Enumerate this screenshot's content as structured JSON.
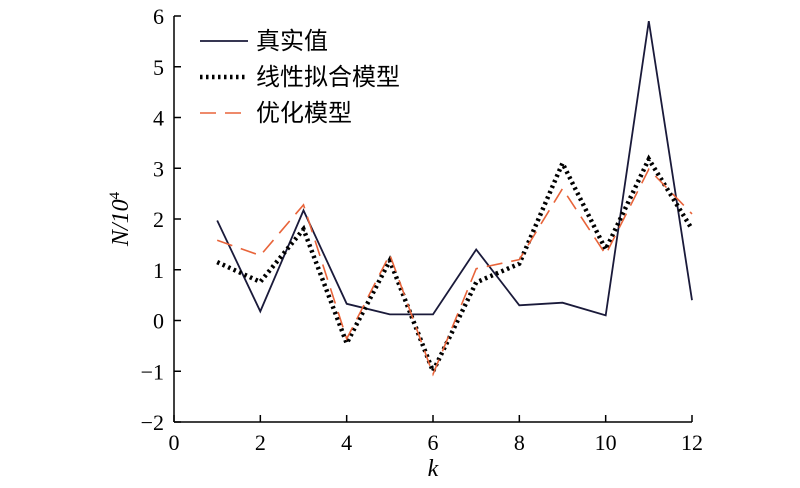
{
  "chart_data": {
    "type": "line",
    "xlabel": "k",
    "ylabel_base": "N/10",
    "ylabel_exp": "4",
    "xlim": [
      0,
      12
    ],
    "ylim": [
      -2,
      6
    ],
    "xticks": [
      0,
      2,
      4,
      6,
      8,
      10,
      12
    ],
    "yticks": [
      -2,
      -1,
      0,
      1,
      2,
      3,
      4,
      5,
      6
    ],
    "xtick_labels": [
      "0",
      "2",
      "4",
      "6",
      "8",
      "10",
      "12"
    ],
    "ytick_labels": [
      "−2",
      "−1",
      "0",
      "1",
      "2",
      "3",
      "4",
      "5",
      "6"
    ],
    "grid": false,
    "legend_position": "top-left",
    "x": [
      1,
      2,
      3,
      4,
      5,
      6,
      7,
      8,
      9,
      10,
      11,
      12
    ],
    "series": [
      {
        "name": "真实值",
        "style": "solid",
        "color": "#1a1a3a",
        "values": [
          1.97,
          0.18,
          2.17,
          0.33,
          0.12,
          0.12,
          1.4,
          0.3,
          0.35,
          0.1,
          5.9,
          0.4
        ]
      },
      {
        "name": "线性拟合模型",
        "style": "dotted",
        "color": "#000000",
        "values": [
          1.15,
          0.76,
          1.8,
          -0.45,
          1.18,
          -1.0,
          0.75,
          1.12,
          3.1,
          1.4,
          3.18,
          1.8
        ]
      },
      {
        "name": "优化模型",
        "style": "dashed",
        "color": "#e8643a",
        "values": [
          1.58,
          1.28,
          2.28,
          -0.36,
          1.3,
          -1.06,
          1.02,
          1.2,
          2.6,
          1.3,
          2.98,
          2.1
        ]
      }
    ]
  }
}
